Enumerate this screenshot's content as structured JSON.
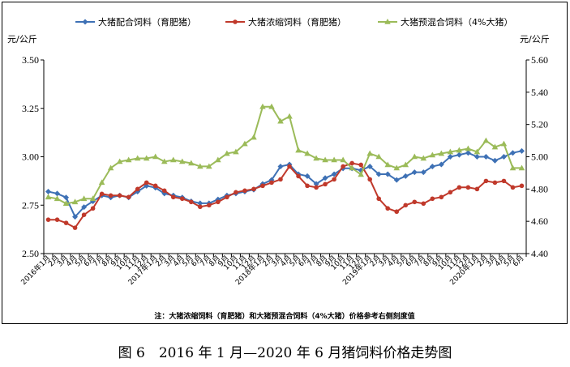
{
  "chart_data": {
    "type": "line",
    "categories": [
      "2016年1月",
      "2月",
      "3月",
      "4月",
      "5月",
      "6月",
      "7月",
      "8月",
      "9月",
      "10月",
      "11月",
      "12月",
      "2017年1月",
      "2月",
      "3月",
      "4月",
      "5月",
      "6月",
      "7月",
      "8月",
      "9月",
      "10月",
      "11月",
      "12月",
      "2018年1月",
      "2月",
      "3月",
      "4月",
      "5月",
      "6月",
      "7月",
      "8月",
      "9月",
      "10月",
      "11月",
      "12月",
      "2019年1月",
      "2月",
      "3月",
      "4月",
      "5月",
      "6月",
      "7月",
      "8月",
      "9月",
      "10月",
      "11月",
      "12月",
      "2020年1月",
      "2月",
      "3月",
      "4月",
      "5月",
      "6月"
    ],
    "left_axis": {
      "unit": "元/公斤",
      "ylim": [
        2.5,
        3.5
      ],
      "ticks": [
        "2.50",
        "2.75",
        "3.00",
        "3.25",
        "3.50"
      ]
    },
    "right_axis": {
      "unit": "元/公斤",
      "ylim": [
        4.4,
        5.6
      ],
      "ticks": [
        "4.40",
        "4.60",
        "4.80",
        "5.00",
        "5.20",
        "5.40",
        "5.60"
      ]
    },
    "series": [
      {
        "name": "大猪配合饲料（育肥猪）",
        "axis": "left",
        "color": "#3E71B5",
        "marker": "diamond",
        "values": [
          2.82,
          2.81,
          2.79,
          2.69,
          2.74,
          2.77,
          2.8,
          2.79,
          2.8,
          2.79,
          2.82,
          2.85,
          2.84,
          2.81,
          2.8,
          2.79,
          2.77,
          2.76,
          2.76,
          2.78,
          2.8,
          2.81,
          2.82,
          2.83,
          2.86,
          2.88,
          2.95,
          2.96,
          2.91,
          2.9,
          2.86,
          2.89,
          2.91,
          2.94,
          2.94,
          2.93,
          2.95,
          2.91,
          2.91,
          2.88,
          2.9,
          2.92,
          2.92,
          2.95,
          2.96,
          3.0,
          3.01,
          3.02,
          3.0,
          3.0,
          2.98,
          3.0,
          3.02,
          3.03
        ]
      },
      {
        "name": "大猪浓缩饲料（育肥猪）",
        "axis": "right",
        "color": "#C0392B",
        "marker": "circle",
        "values": [
          4.61,
          4.61,
          4.59,
          4.56,
          4.64,
          4.68,
          4.77,
          4.76,
          4.76,
          4.75,
          4.8,
          4.84,
          4.82,
          4.79,
          4.75,
          4.74,
          4.72,
          4.69,
          4.7,
          4.72,
          4.75,
          4.78,
          4.79,
          4.8,
          4.82,
          4.84,
          4.86,
          4.94,
          4.88,
          4.82,
          4.81,
          4.83,
          4.86,
          4.94,
          4.96,
          4.95,
          4.86,
          4.74,
          4.68,
          4.66,
          4.7,
          4.72,
          4.71,
          4.74,
          4.75,
          4.78,
          4.81,
          4.81,
          4.8,
          4.85,
          4.84,
          4.85,
          4.81,
          4.82
        ]
      },
      {
        "name": "大猪预混合饲料（4%大猪）",
        "axis": "right",
        "color": "#9BBB59",
        "marker": "triangle",
        "values": [
          4.75,
          4.74,
          4.71,
          4.72,
          4.74,
          4.74,
          4.84,
          4.93,
          4.97,
          4.98,
          4.99,
          4.99,
          5.0,
          4.97,
          4.98,
          4.97,
          4.96,
          4.94,
          4.94,
          4.98,
          5.02,
          5.03,
          5.08,
          5.12,
          5.31,
          5.31,
          5.22,
          5.25,
          5.04,
          5.02,
          4.99,
          4.98,
          4.98,
          4.98,
          4.93,
          4.89,
          5.02,
          5.0,
          4.95,
          4.93,
          4.95,
          5.0,
          4.99,
          5.01,
          5.02,
          5.03,
          5.04,
          5.05,
          5.03,
          5.1,
          5.06,
          5.08,
          4.93,
          4.93
        ]
      }
    ],
    "legend_position": "top",
    "grid": false,
    "note": "注：大猪浓缩饲料（育肥猪）和大猪预混合饲料（4%大猪）价格参考右侧刻度值"
  },
  "caption": "图 6　2016 年 1 月—2020 年 6 月猪饲料价格走势图"
}
